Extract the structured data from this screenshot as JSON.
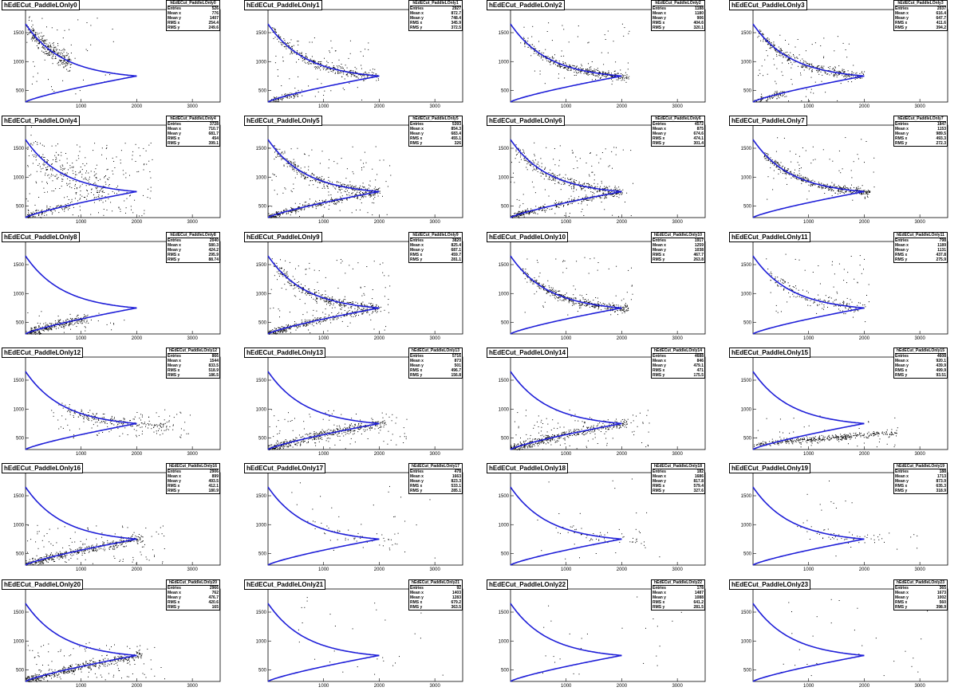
{
  "chart_data": {
    "type": "scatter",
    "layout": {
      "columns": 4,
      "rows": 6
    },
    "x_ticks": [
      1000,
      2000,
      3000
    ],
    "y_ticks": [
      500,
      1000,
      1500
    ],
    "xlim": [
      0,
      3500
    ],
    "ylim": [
      300,
      1900
    ],
    "curve_color": "#1e1ed8",
    "marker_color": "#000000",
    "stats_labels": [
      "Entries",
      "Mean x",
      "Mean y",
      "RMS x",
      "RMS y"
    ],
    "panels": [
      {
        "title": "hEdECut_PaddleLOnly0",
        "stats_name": "hEdECut_PaddleLOnly0",
        "entries": "526",
        "mean_x": "776",
        "mean_y": "1407",
        "rms_x": "254.4",
        "rms_y": "249.6",
        "pattern": "upper-left"
      },
      {
        "title": "hEdECut_PaddleLOnly1",
        "stats_name": "hEdECut_PaddleLOnly1",
        "entries": "2927",
        "mean_x": "872.7",
        "mean_y": "748.4",
        "rms_x": "345.9",
        "rms_y": "372.5",
        "pattern": "upper-band-lowleft"
      },
      {
        "title": "hEdECut_PaddleLOnly2",
        "stats_name": "hEdECut_PaddleLOnly2",
        "entries": "1188",
        "mean_x": "1180",
        "mean_y": "906",
        "rms_x": "404.6",
        "rms_y": "320.1",
        "pattern": "upper-band"
      },
      {
        "title": "hEdECut_PaddleLOnly3",
        "stats_name": "hEdECut_PaddleLOnly3",
        "entries": "2037",
        "mean_x": "616.4",
        "mean_y": "647.7",
        "rms_x": "411.6",
        "rms_y": "394.2",
        "pattern": "upper-band-lowleft"
      },
      {
        "title": "hEdECut_PaddleLOnly4",
        "stats_name": "hEdECut_PaddleLOnly4",
        "entries": "3728",
        "mean_x": "710.7",
        "mean_y": "681.7",
        "rms_x": "454",
        "rms_y": "399.1",
        "pattern": "scatter-wide"
      },
      {
        "title": "hEdECut_PaddleLOnly5",
        "stats_name": "hEdECut_PaddleLOnly5",
        "entries": "5393",
        "mean_x": "854.3",
        "mean_y": "683.4",
        "rms_x": "455.1",
        "rms_y": "326",
        "pattern": "both-bands"
      },
      {
        "title": "hEdECut_PaddleLOnly6",
        "stats_name": "hEdECut_PaddleLOnly6",
        "entries": "4572",
        "mean_x": "875",
        "mean_y": "674.6",
        "rms_x": "474.1",
        "rms_y": "301.4",
        "pattern": "both-bands"
      },
      {
        "title": "hEdECut_PaddleLOnly7",
        "stats_name": "hEdECut_PaddleLOnly7",
        "entries": "1847",
        "mean_x": "1153",
        "mean_y": "989.5",
        "rms_x": "493.3",
        "rms_y": "272.3",
        "pattern": "upper-band"
      },
      {
        "title": "hEdECut_PaddleLOnly8",
        "stats_name": "hEdECut_PaddleLOnly8",
        "entries": "2040",
        "mean_x": "580.3",
        "mean_y": "424.2",
        "rms_x": "295.9",
        "rms_y": "88.74",
        "pattern": "lower-left"
      },
      {
        "title": "hEdECut_PaddleLOnly9",
        "stats_name": "hEdECut_PaddleLOnly9",
        "entries": "3820",
        "mean_x": "825.4",
        "mean_y": "687.1",
        "rms_x": "459.7",
        "rms_y": "281.1",
        "pattern": "both-bands"
      },
      {
        "title": "hEdECut_PaddleLOnly10",
        "stats_name": "hEdECut_PaddleLOnly10",
        "entries": "1917",
        "mean_x": "1259",
        "mean_y": "1038",
        "rms_x": "467.7",
        "rms_y": "263.8",
        "pattern": "upper-band"
      },
      {
        "title": "hEdECut_PaddleLOnly11",
        "stats_name": "hEdECut_PaddleLOnly11",
        "entries": "798",
        "mean_x": "1189",
        "mean_y": "1131",
        "rms_x": "437.8",
        "rms_y": "275.9",
        "pattern": "upper-band-sparse"
      },
      {
        "title": "hEdECut_PaddleLOnly12",
        "stats_name": "hEdECut_PaddleLOnly12",
        "entries": "866",
        "mean_x": "1544",
        "mean_y": "833.5",
        "rms_x": "518.9",
        "rms_y": "186.5",
        "pattern": "mid-right"
      },
      {
        "title": "hEdECut_PaddleLOnly13",
        "stats_name": "hEdECut_PaddleLOnly13",
        "entries": "5716",
        "mean_x": "873",
        "mean_y": "501",
        "rms_x": "496.7",
        "rms_y": "156.8",
        "pattern": "lower-band"
      },
      {
        "title": "hEdECut_PaddleLOnly14",
        "stats_name": "hEdECut_PaddleLOnly14",
        "entries": "4688",
        "mean_x": "846",
        "mean_y": "479.1",
        "rms_x": "471",
        "rms_y": "175.5",
        "pattern": "lower-band"
      },
      {
        "title": "hEdECut_PaddleLOnly15",
        "stats_name": "hEdECut_PaddleLOnly15",
        "entries": "4608",
        "mean_x": "920.1",
        "mean_y": "439.9",
        "rms_x": "499.9",
        "rms_y": "93.51",
        "pattern": "lower-flat"
      },
      {
        "title": "hEdECut_PaddleLOnly16",
        "stats_name": "hEdECut_PaddleLOnly16",
        "entries": "2906",
        "mean_x": "899",
        "mean_y": "493.5",
        "rms_x": "412.1",
        "rms_y": "180.9",
        "pattern": "lower-band"
      },
      {
        "title": "hEdECut_PaddleLOnly17",
        "stats_name": "hEdECut_PaddleLOnly17",
        "entries": "478",
        "mean_x": "1663",
        "mean_y": "823.3",
        "rms_x": "533.1",
        "rms_y": "285.1",
        "pattern": "sparse"
      },
      {
        "title": "hEdECut_PaddleLOnly18",
        "stats_name": "hEdECut_PaddleLOnly18",
        "entries": "182",
        "mean_x": "1686",
        "mean_y": "817.8",
        "rms_x": "579.4",
        "rms_y": "327.6",
        "pattern": "sparse"
      },
      {
        "title": "hEdECut_PaddleLOnly19",
        "stats_name": "hEdECut_PaddleLOnly19",
        "entries": "188",
        "mean_x": "1713",
        "mean_y": "873.9",
        "rms_x": "635.3",
        "rms_y": "318.9",
        "pattern": "sparse"
      },
      {
        "title": "hEdECut_PaddleLOnly20",
        "stats_name": "hEdECut_PaddleLOnly20",
        "entries": "2966",
        "mean_x": "762",
        "mean_y": "476.7",
        "rms_x": "420.6",
        "rms_y": "165",
        "pattern": "lower-band"
      },
      {
        "title": "hEdECut_PaddleLOnly21",
        "stats_name": "hEdECut_PaddleLOnly21",
        "entries": "92",
        "mean_x": "1403",
        "mean_y": "1283",
        "rms_x": "679.2",
        "rms_y": "363.5",
        "pattern": "very-sparse"
      },
      {
        "title": "hEdECut_PaddleLOnly22",
        "stats_name": "hEdECut_PaddleLOnly22",
        "entries": "178",
        "mean_x": "1487",
        "mean_y": "1088",
        "rms_x": "641.2",
        "rms_y": "281.5",
        "pattern": "very-sparse"
      },
      {
        "title": "hEdECut_PaddleLOnly23",
        "stats_name": "hEdECut_PaddleLOnly23",
        "entries": "365",
        "mean_x": "1673",
        "mean_y": "1002",
        "rms_x": "560",
        "rms_y": "398.9",
        "pattern": "very-sparse"
      }
    ]
  }
}
